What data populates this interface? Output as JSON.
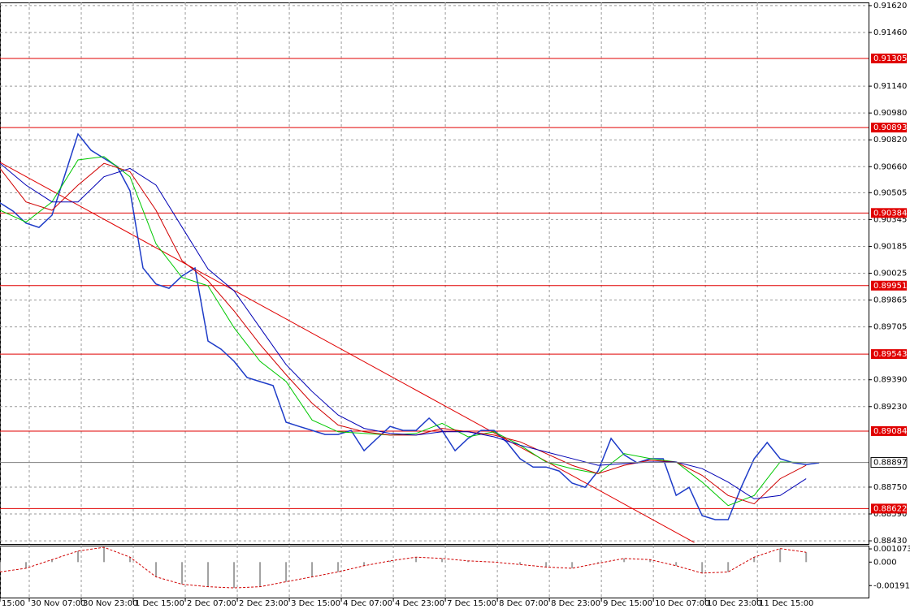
{
  "chart_data": {
    "type": "line",
    "xlim": [
      0,
      66.8
    ],
    "ylim": [
      0.88411,
      0.91639
    ],
    "grid": true,
    "xticks": [
      {
        "value": 0,
        "label": "15:00"
      },
      {
        "value": 2.25,
        "label": "30 Nov 07:00"
      },
      {
        "value": 6.25,
        "label": "30 Nov 23:00"
      },
      {
        "value": 10.25,
        "label": "1 Dec 15:00"
      },
      {
        "value": 14.25,
        "label": "2 Dec 07:00"
      },
      {
        "value": 18.25,
        "label": "2 Dec 23:00"
      },
      {
        "value": 22.25,
        "label": "3 Dec 15:00"
      },
      {
        "value": 26.25,
        "label": "4 Dec 07:00"
      },
      {
        "value": 30.25,
        "label": "4 Dec 23:00"
      },
      {
        "value": 34.25,
        "label": "7 Dec 15:00"
      },
      {
        "value": 38.25,
        "label": "8 Dec 07:00"
      },
      {
        "value": 42.25,
        "label": "8 Dec 23:00"
      },
      {
        "value": 46.25,
        "label": "9 Dec 15:00"
      },
      {
        "value": 50.25,
        "label": "10 Dec 07:00"
      },
      {
        "value": 54.25,
        "label": "10 Dec 23:00"
      },
      {
        "value": 58.25,
        "label": "11 Dec 15:00"
      }
    ],
    "yticks": [
      {
        "value": 0.9162,
        "label": "0.91620"
      },
      {
        "value": 0.9146,
        "label": "0.91460"
      },
      {
        "value": 0.9114,
        "label": "0.91140"
      },
      {
        "value": 0.9098,
        "label": "0.90980"
      },
      {
        "value": 0.9082,
        "label": "0.90820"
      },
      {
        "value": 0.9066,
        "label": "0.90660"
      },
      {
        "value": 0.90505,
        "label": "0.90505"
      },
      {
        "value": 0.90345,
        "label": "0.90345"
      },
      {
        "value": 0.90185,
        "label": "0.90185"
      },
      {
        "value": 0.90025,
        "label": "0.90025"
      },
      {
        "value": 0.89865,
        "label": "0.89865"
      },
      {
        "value": 0.89705,
        "label": "0.89705"
      },
      {
        "value": 0.8939,
        "label": "0.89390"
      },
      {
        "value": 0.8923,
        "label": "0.89230"
      },
      {
        "value": 0.8875,
        "label": "0.88750"
      },
      {
        "value": 0.8859,
        "label": "0.88590"
      },
      {
        "value": 0.8843,
        "label": "0.88430"
      }
    ],
    "levels": [
      0.91305,
      0.90893,
      0.90384,
      0.89951,
      0.89543,
      0.89084,
      0.88622
    ],
    "level_color": "#e00000",
    "bid": 0.88897,
    "trendline": {
      "color": "#e00000",
      "x": [
        0,
        53.4
      ],
      "values": [
        0.90686,
        0.8842
      ]
    },
    "series": [
      {
        "color": "#1e3cc8",
        "width": 1.5,
        "x": [
          0,
          1,
          2,
          3,
          4,
          5,
          6,
          7,
          8,
          9,
          10,
          11,
          12,
          13,
          14,
          15,
          16,
          17,
          18,
          19,
          20,
          21,
          22,
          23,
          24,
          25,
          26,
          27,
          28,
          29,
          30,
          31,
          32,
          33,
          34,
          35,
          36,
          37,
          38,
          39,
          40,
          41,
          42,
          43,
          44,
          45,
          46,
          47,
          48,
          49,
          50,
          51,
          52,
          53,
          54,
          55,
          56,
          57,
          58,
          59,
          60,
          61,
          62,
          63
        ],
        "values": [
          0.90444,
          0.90395,
          0.90323,
          0.90298,
          0.90371,
          0.90613,
          0.90855,
          0.90758,
          0.9071,
          0.90662,
          0.90516,
          0.90056,
          0.8996,
          0.89935,
          0.90008,
          0.90056,
          0.89621,
          0.89572,
          0.895,
          0.89403,
          0.89379,
          0.89355,
          0.89137,
          0.89112,
          0.89088,
          0.89064,
          0.89064,
          0.89088,
          0.88967,
          0.8904,
          0.89112,
          0.89088,
          0.89088,
          0.89161,
          0.89088,
          0.88967,
          0.8904,
          0.89088,
          0.89088,
          0.89016,
          0.88919,
          0.8887,
          0.8887,
          0.88846,
          0.88774,
          0.88749,
          0.88846,
          0.8904,
          0.88943,
          0.88895,
          0.88919,
          0.88919,
          0.88701,
          0.88749,
          0.8858,
          0.88556,
          0.88556,
          0.88749,
          0.88919,
          0.89016,
          0.88919,
          0.88895,
          0.88885,
          0.88895
        ]
      },
      {
        "color": "#00c800",
        "width": 1,
        "x": [
          0,
          2,
          4,
          6,
          8,
          10,
          12,
          14,
          16,
          18,
          20,
          22,
          24,
          26,
          28,
          30,
          32,
          34,
          36,
          38,
          40,
          42,
          44,
          46,
          48,
          50,
          52,
          54,
          56,
          58,
          60,
          62
        ],
        "values": [
          0.904,
          0.9033,
          0.9045,
          0.907,
          0.9072,
          0.906,
          0.902,
          0.9,
          0.8995,
          0.897,
          0.895,
          0.8938,
          0.8915,
          0.8908,
          0.8907,
          0.8906,
          0.8907,
          0.8913,
          0.8905,
          0.8908,
          0.89,
          0.889,
          0.8886,
          0.8883,
          0.8895,
          0.8892,
          0.889,
          0.8878,
          0.8864,
          0.887,
          0.889,
          0.88897
        ]
      },
      {
        "color": "#d00000",
        "width": 1,
        "x": [
          0,
          2,
          4,
          6,
          8,
          10,
          12,
          14,
          16,
          18,
          20,
          22,
          24,
          26,
          28,
          30,
          32,
          34,
          36,
          38,
          40,
          42,
          44,
          46,
          48,
          50,
          52,
          54,
          56,
          58,
          60,
          62
        ],
        "values": [
          0.9065,
          0.9045,
          0.904,
          0.9055,
          0.9068,
          0.9063,
          0.904,
          0.901,
          0.8998,
          0.898,
          0.896,
          0.8942,
          0.8925,
          0.8912,
          0.8908,
          0.8906,
          0.8906,
          0.891,
          0.8908,
          0.8906,
          0.8902,
          0.8895,
          0.8888,
          0.8883,
          0.8888,
          0.8891,
          0.889,
          0.8882,
          0.887,
          0.8865,
          0.888,
          0.8888
        ]
      },
      {
        "color": "#0000b4",
        "width": 1,
        "x": [
          0,
          2,
          4,
          6,
          8,
          10,
          12,
          14,
          16,
          18,
          20,
          22,
          24,
          26,
          28,
          30,
          32,
          34,
          36,
          38,
          40,
          42,
          44,
          46,
          48,
          50,
          52,
          54,
          56,
          58,
          60,
          62
        ],
        "values": [
          0.9068,
          0.9055,
          0.9045,
          0.9045,
          0.906,
          0.9065,
          0.9055,
          0.903,
          0.9005,
          0.8992,
          0.897,
          0.8948,
          0.8932,
          0.8918,
          0.891,
          0.8907,
          0.8906,
          0.8908,
          0.8908,
          0.8905,
          0.89,
          0.8896,
          0.8892,
          0.8888,
          0.8889,
          0.889,
          0.889,
          0.8886,
          0.8878,
          0.8868,
          0.887,
          0.888
        ]
      }
    ],
    "oscillator": {
      "ylim": [
        -0.00295,
        0.00134
      ],
      "yticks": [
        0.001073,
        {
          "value": 0,
          "label": "0.000"
        },
        -0.001911
      ],
      "bar_color": "#a0a0a0",
      "line_color": "#d00000",
      "x": [
        0,
        2,
        4,
        6,
        8,
        10,
        12,
        14,
        16,
        18,
        20,
        22,
        24,
        26,
        28,
        30,
        32,
        34,
        36,
        38,
        40,
        42,
        44,
        46,
        48,
        50,
        52,
        54,
        56,
        58,
        60,
        62
      ],
      "values": [
        -0.0008,
        -0.0005,
        0.0002,
        0.0009,
        0.0012,
        0.0004,
        -0.0012,
        -0.0018,
        -0.002,
        -0.0021,
        -0.002,
        -0.0016,
        -0.0012,
        -0.0008,
        -0.0003,
        0.0001,
        0.0004,
        0.0003,
        0.0001,
        0,
        -0.0002,
        -0.0004,
        -0.0005,
        -0.0001,
        0.0003,
        0.0002,
        -0.0003,
        -0.0009,
        -0.0008,
        0.0004,
        0.0011,
        0.0008
      ]
    }
  }
}
